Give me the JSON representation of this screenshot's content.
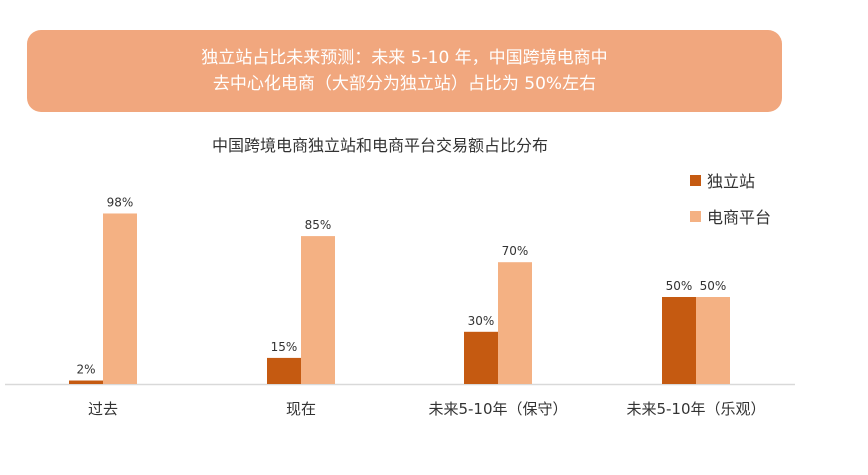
{
  "banner": {
    "line1": "独立站占比未来预测：未来 5-10 年，中国跨境电商中",
    "line2": "去中心化电商（大部分为独立站）占比为 50%左右"
  },
  "colors": {
    "banner_bg": "#F1A77E",
    "independent": "#C55A11",
    "platform": "#F4B183",
    "axis": "#D9D9D9"
  },
  "chart_data": {
    "type": "bar",
    "title": "中国跨境电商独立站和电商平台交易额占比分布",
    "categories": [
      "过去",
      "现在",
      "未来5-10年（保守）",
      "未来5-10年（乐观）"
    ],
    "series": [
      {
        "name": "独立站",
        "values": [
          2,
          15,
          30,
          50
        ],
        "labels": [
          "2%",
          "15%",
          "30%",
          "50%"
        ]
      },
      {
        "name": "电商平台",
        "values": [
          98,
          85,
          70,
          50
        ],
        "labels": [
          "98%",
          "85%",
          "70%",
          "50%"
        ]
      }
    ],
    "ylim": [
      0,
      100
    ],
    "grid": false,
    "legend_position": "right"
  }
}
